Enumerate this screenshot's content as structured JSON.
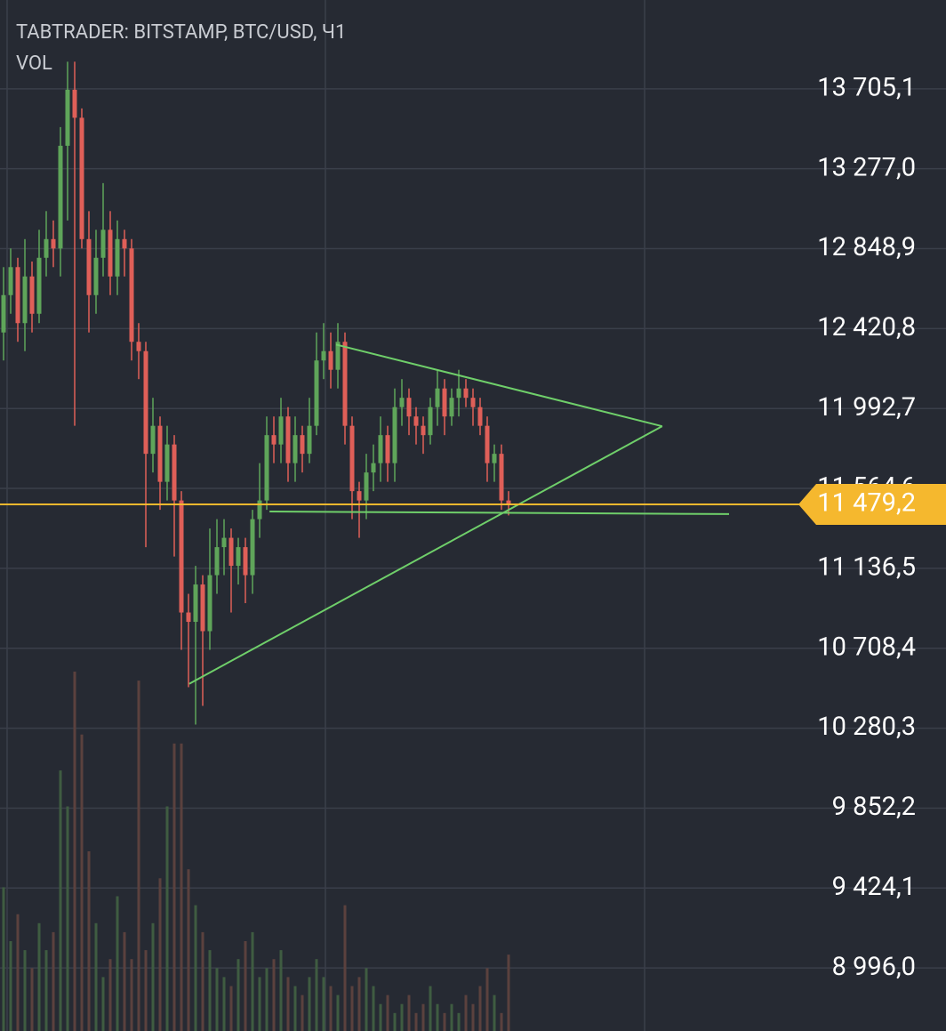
{
  "chart_data": {
    "type": "candlestick",
    "title": "TABTRADER: BITSTAMP, BTC/USD, Ч1",
    "volume_label": "VOL",
    "up_color": "#5fa55a",
    "down_color": "#df5f58",
    "volume_up_color": "#3f5c41",
    "volume_down_color": "#5b413e",
    "grid": true,
    "ylim": [
      8658.3,
      14180.8
    ],
    "yticks": [
      {
        "value": 13705.1,
        "label": "13 705,1"
      },
      {
        "value": 13277.0,
        "label": "13 277,0"
      },
      {
        "value": 12848.9,
        "label": "12 848,9"
      },
      {
        "value": 12420.8,
        "label": "12 420,8"
      },
      {
        "value": 11992.7,
        "label": "11 992,7"
      },
      {
        "value": 11564.6,
        "label": "11 564,6"
      },
      {
        "value": 11136.5,
        "label": "11 136,5"
      },
      {
        "value": 10708.4,
        "label": "10 708,4"
      },
      {
        "value": 10280.3,
        "label": "10 280,3"
      },
      {
        "value": 9852.2,
        "label": "9 852,2"
      },
      {
        "value": 9424.1,
        "label": "9 424,1"
      },
      {
        "value": 8996.0,
        "label": "8 996,0"
      }
    ],
    "open": [
      12400,
      12600,
      12750,
      12450,
      12700,
      12500,
      12800,
      12900,
      12850,
      13400,
      13700,
      13550,
      12900,
      12600,
      12800,
      12950,
      12700,
      12900,
      12850,
      12350,
      12300,
      11750,
      11900,
      11600,
      11800,
      11500,
      10900,
      10850,
      11050,
      10800,
      11100,
      11250,
      11300,
      11150,
      11250,
      11100,
      11400,
      11500,
      11850,
      11800,
      11950,
      11700,
      11850,
      11750,
      11900,
      12250,
      12300,
      12200,
      12350,
      11900,
      11550,
      11500,
      11650,
      11700,
      11850,
      11700,
      12000,
      12050,
      11950,
      11900,
      11850,
      12000,
      12100,
      11950,
      12050,
      12100,
      12050,
      12000,
      11900,
      11700,
      11750,
      11500
    ],
    "high": [
      12750,
      12850,
      12800,
      12900,
      12780,
      12950,
      13050,
      13000,
      13500,
      13850,
      13850,
      13600,
      13050,
      12950,
      13200,
      13050,
      13000,
      12950,
      12900,
      12450,
      12350,
      12050,
      11950,
      11900,
      11850,
      11550,
      11000,
      11150,
      11100,
      11350,
      11400,
      11400,
      11350,
      11300,
      11300,
      11450,
      11700,
      11950,
      11950,
      12050,
      12000,
      11950,
      11900,
      12050,
      12400,
      12450,
      12400,
      12450,
      12400,
      11950,
      11600,
      11750,
      11800,
      11950,
      11900,
      12100,
      12150,
      12100,
      12000,
      11950,
      12050,
      12200,
      12150,
      12100,
      12200,
      12150,
      12100,
      12050,
      11950,
      11800,
      11800,
      11550
    ],
    "low": [
      12250,
      12500,
      12350,
      12300,
      12400,
      12450,
      12700,
      12750,
      12700,
      13000,
      11900,
      12850,
      12400,
      12500,
      12700,
      12600,
      12600,
      12700,
      12250,
      12150,
      11250,
      11650,
      11450,
      11500,
      11200,
      10700,
      10500,
      10300,
      10400,
      10700,
      11000,
      11100,
      10900,
      11050,
      10950,
      11000,
      11300,
      11450,
      11700,
      11700,
      11600,
      11600,
      11650,
      11700,
      11850,
      12150,
      12100,
      12100,
      11800,
      11400,
      11300,
      11400,
      11550,
      11600,
      11600,
      11600,
      11900,
      11850,
      11800,
      11750,
      11800,
      11900,
      11850,
      11900,
      11950,
      12000,
      11900,
      11850,
      11600,
      11600,
      11450,
      11420
    ],
    "close": [
      12600,
      12750,
      12450,
      12700,
      12500,
      12800,
      12900,
      12850,
      13400,
      13700,
      13550,
      12900,
      12600,
      12800,
      12950,
      12700,
      12900,
      12850,
      12350,
      12300,
      11750,
      11900,
      11600,
      11800,
      11500,
      10900,
      10850,
      11050,
      10800,
      11100,
      11250,
      11300,
      11150,
      11250,
      11100,
      11400,
      11500,
      11850,
      11800,
      11950,
      11700,
      11850,
      11750,
      11900,
      12250,
      12300,
      12200,
      12350,
      11900,
      11550,
      11500,
      11650,
      11700,
      11850,
      11700,
      12000,
      12050,
      11950,
      11900,
      11850,
      12000,
      12100,
      11950,
      12050,
      12100,
      12050,
      12000,
      11900,
      11700,
      11750,
      11500,
      11479.2
    ],
    "volume": [
      160,
      100,
      130,
      90,
      70,
      120,
      90,
      110,
      290,
      250,
      400,
      330,
      200,
      120,
      60,
      80,
      150,
      110,
      80,
      390,
      90,
      120,
      170,
      250,
      320,
      320,
      180,
      140,
      110,
      90,
      70,
      60,
      50,
      80,
      100,
      110,
      60,
      70,
      80,
      90,
      60,
      50,
      40,
      60,
      80,
      60,
      50,
      40,
      140,
      50,
      60,
      70,
      50,
      30,
      40,
      20,
      30,
      40,
      20,
      30,
      50,
      30,
      20,
      30,
      20,
      40,
      30,
      50,
      70,
      40,
      20,
      85
    ],
    "trendlines": [
      {
        "color": "#6fcf6a",
        "points": [
          [
            46.75,
            12335
          ],
          [
            92.6,
            11897.6
          ]
        ]
      },
      {
        "color": "#6fcf6a",
        "points": [
          [
            26.1,
            10518
          ],
          [
            92.6,
            11897.6
          ]
        ]
      },
      {
        "color": "#6fcf6a",
        "points": [
          [
            37.4,
            11441
          ],
          [
            102,
            11427
          ]
        ]
      }
    ],
    "last_price": {
      "value": 11479.2,
      "label": "11 479,2",
      "color": "#f5b82e"
    }
  }
}
